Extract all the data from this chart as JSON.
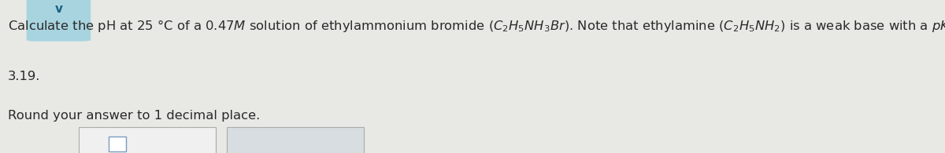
{
  "bg_color": "#e8e8e4",
  "text_color": "#2a2a2a",
  "fontsize": 11.8,
  "chevron_bg": "#a8d4e0",
  "chevron_color": "#1a6080",
  "box1_facecolor": "#f0f0f0",
  "box1_edgecolor": "#aaaaaa",
  "box2_facecolor": "#d8dde2",
  "box2_edgecolor": "#aaaaaa",
  "sq_edgecolor": "#7a9cc0"
}
